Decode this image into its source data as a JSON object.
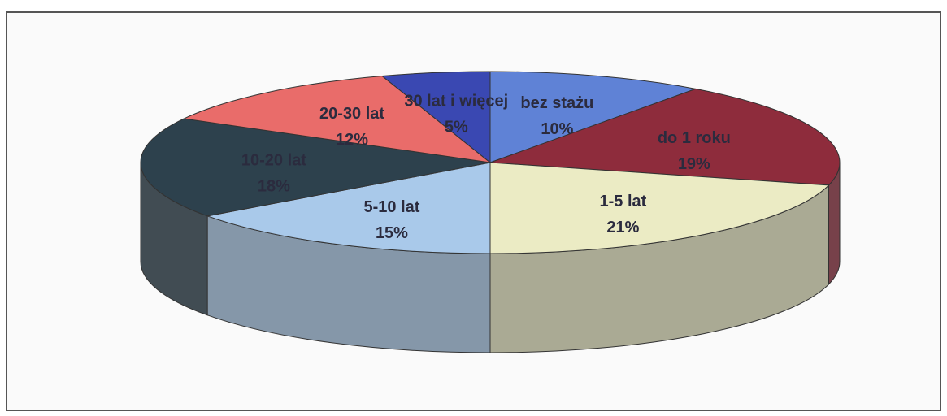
{
  "chart_data": {
    "type": "pie",
    "three_d": true,
    "categories": [
      "bez stażu",
      "do 1 roku",
      "1-5 lat",
      "5-10 lat",
      "10-20 lat",
      "20-30 lat",
      "30 lat i więcej"
    ],
    "values": [
      10,
      19,
      21,
      15,
      18,
      12,
      5
    ],
    "value_labels": [
      "10%",
      "19%",
      "21%",
      "15%",
      "18%",
      "12%",
      "5%"
    ],
    "colors": [
      "#5f82d6",
      "#8e2c3c",
      "#ebebc4",
      "#a9c9ea",
      "#2d414d",
      "#e96c6a",
      "#3a48b2"
    ]
  }
}
